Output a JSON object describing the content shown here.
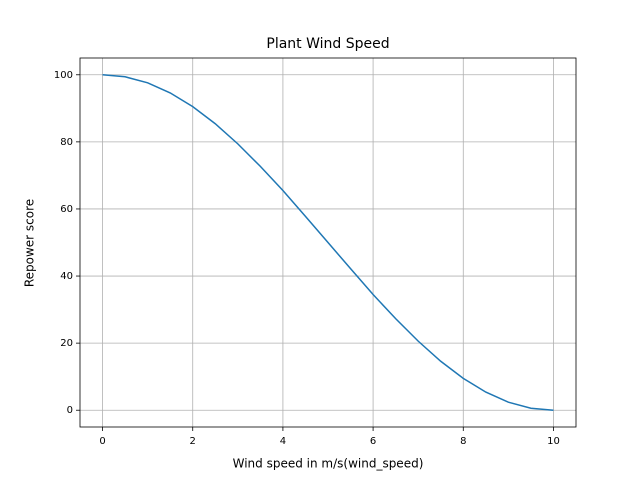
{
  "chart_data": {
    "type": "line",
    "title": "Plant Wind Speed",
    "xlabel": "Wind speed in m/s(wind_speed)",
    "ylabel": "Repower score",
    "x": [
      0,
      0.5,
      1,
      1.5,
      2,
      2.5,
      3,
      3.5,
      4,
      4.5,
      5,
      5.5,
      6,
      6.5,
      7,
      7.5,
      8,
      8.5,
      9,
      9.5,
      10
    ],
    "series": [
      {
        "name": "Repower score",
        "color": "#1f77b4",
        "values": [
          100,
          99.4,
          97.6,
          94.6,
          90.5,
          85.4,
          79.4,
          72.7,
          65.5,
          57.8,
          50,
          42.2,
          34.5,
          27.3,
          20.6,
          14.6,
          9.5,
          5.4,
          2.4,
          0.6,
          0
        ]
      }
    ],
    "xlim": [
      -0.5,
      10.5
    ],
    "xticks": [
      0,
      2,
      4,
      6,
      8,
      10
    ],
    "ylim": [
      -5,
      105
    ],
    "yticks": [
      0,
      20,
      40,
      60,
      80,
      100
    ],
    "grid": true
  }
}
